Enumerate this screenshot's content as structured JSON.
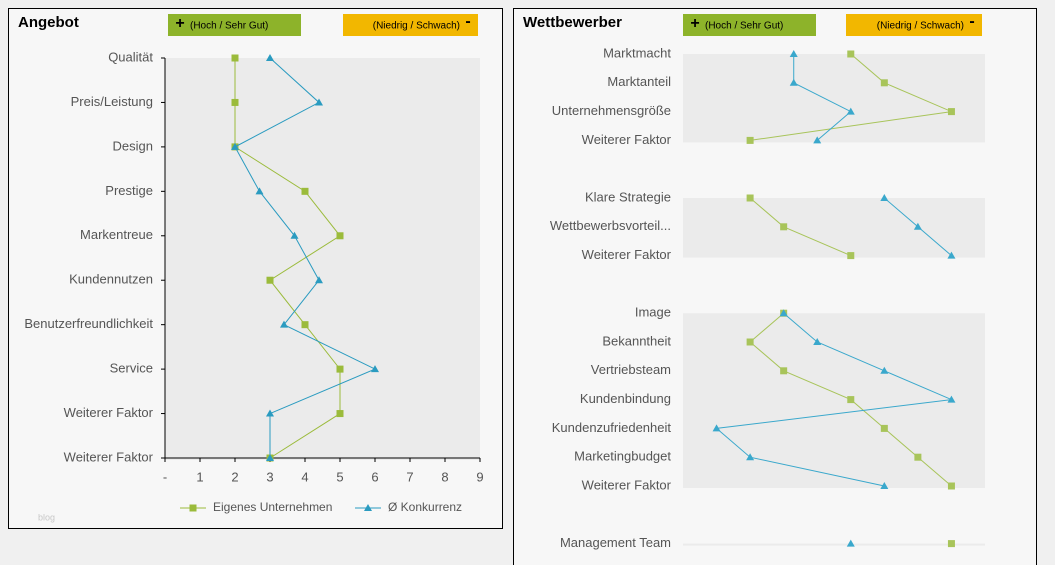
{
  "chart_data": [
    {
      "type": "line",
      "orientation": "horizontal",
      "title": "Angebot",
      "badges": [
        {
          "sign": "+",
          "label": "(Hoch / Sehr Gut)",
          "color": "#8db32a"
        },
        {
          "sign": "-",
          "label": "(Niedrig / Schwach)",
          "color": "#f2b700"
        }
      ],
      "categories": [
        "Qualität",
        "Preis/Leistung",
        "Design",
        "Prestige",
        "Markentreue",
        "Kundennutzen",
        "Benutzerfreundlichkeit",
        "Service",
        "Weiterer Faktor",
        "Weiterer Faktor"
      ],
      "series": [
        {
          "name": "Eigenes Unternehmen",
          "color": "#9bbb3b",
          "marker": "square",
          "values": [
            2,
            2,
            2,
            4,
            5,
            3,
            4,
            5,
            5,
            3
          ]
        },
        {
          "name": "Ø Konkurrenz",
          "color": "#2a9bc0",
          "marker": "triangle",
          "values": [
            3,
            4.4,
            2,
            2.7,
            3.7,
            4.4,
            3.4,
            6,
            3,
            3
          ]
        }
      ],
      "xlim": [
        0,
        9
      ],
      "xticks": [
        {
          "value": 0,
          "label": "-"
        },
        1,
        2,
        3,
        4,
        5,
        6,
        7,
        8,
        9
      ],
      "watermark": "blog"
    },
    {
      "type": "line",
      "orientation": "horizontal",
      "title": "Wettbewerber",
      "badges": [
        {
          "sign": "+",
          "label": "(Hoch / Sehr Gut)",
          "color": "#8db32a"
        },
        {
          "sign": "-",
          "label": "(Niedrig / Schwach)",
          "color": "#f2b700"
        }
      ],
      "categories": [
        "Marktmacht",
        "Marktanteil",
        "Unternehmensgröße",
        "Weiterer Faktor",
        null,
        "Klare Strategie",
        "Wettbewerbsvorteil...",
        "Weiterer Faktor",
        null,
        "Image",
        "Bekanntheit",
        "Vertriebsteam",
        "Kundenbindung",
        "Kundenzufriedenheit",
        "Marketingbudget",
        "Weiterer Faktor",
        null,
        "Management Team"
      ],
      "series": [
        {
          "color": "#a8c45a",
          "marker": "square",
          "values": [
            5,
            6,
            8,
            2,
            null,
            2,
            3,
            5,
            null,
            3,
            2,
            3,
            5,
            6,
            7,
            8,
            null,
            8
          ]
        },
        {
          "color": "#3aa8cc",
          "marker": "triangle",
          "values": [
            3.3,
            3.3,
            5,
            4,
            null,
            6,
            7,
            8,
            null,
            3,
            4,
            6,
            8,
            1,
            2,
            6,
            null,
            5
          ]
        }
      ],
      "xlim": [
        0,
        9
      ]
    }
  ]
}
